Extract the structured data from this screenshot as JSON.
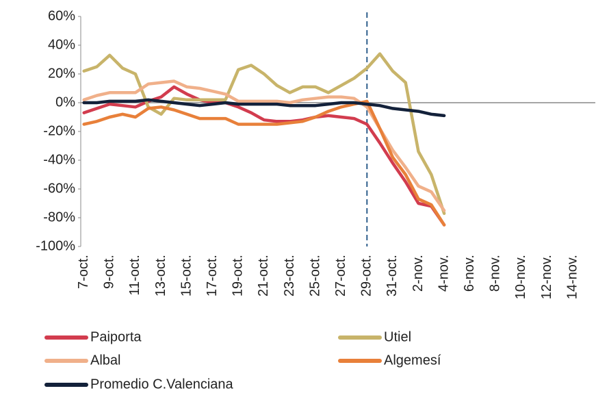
{
  "chart_data": {
    "type": "line",
    "categories": [
      "7-oct.",
      null,
      "9-oct.",
      null,
      "11-oct.",
      null,
      "13-oct.",
      null,
      "15-oct.",
      null,
      "17-oct.",
      null,
      "19-oct.",
      null,
      "21-oct.",
      null,
      "23-oct.",
      null,
      "25-oct.",
      null,
      "27-oct.",
      null,
      "29-oct.",
      null,
      "31-oct.",
      null,
      "2-nov.",
      null,
      "4-nov.",
      null,
      "6-nov.",
      null,
      "8-nov.",
      null,
      "10-nov.",
      null,
      "12-nov.",
      null,
      "14-nov.",
      null
    ],
    "series": [
      {
        "name": "Paiporta",
        "color": "#d23c4e",
        "values": [
          -7,
          -4,
          -1,
          -2,
          -3,
          1,
          4,
          11,
          6,
          2,
          0,
          0,
          -3,
          -7,
          -12,
          -13,
          -13,
          -12,
          -10,
          -9,
          -10,
          -11,
          -15,
          -28,
          -42,
          -55,
          -70,
          -72,
          -85,
          null,
          null,
          null,
          null,
          null,
          null,
          null,
          null,
          null,
          null,
          null
        ]
      },
      {
        "name": "Utiel",
        "color": "#c8b46a",
        "values": [
          22,
          25,
          33,
          24,
          20,
          -3,
          -8,
          3,
          2,
          2,
          2,
          2,
          23,
          26,
          20,
          12,
          7,
          11,
          11,
          7,
          12,
          17,
          24,
          34,
          22,
          14,
          -34,
          -50,
          -77,
          null,
          null,
          null,
          null,
          null,
          null,
          null,
          null,
          null,
          null,
          null
        ]
      },
      {
        "name": "Albal",
        "color": "#f0b08a",
        "values": [
          2,
          5,
          7,
          7,
          7,
          13,
          14,
          15,
          11,
          10,
          8,
          6,
          1,
          1,
          1,
          1,
          0,
          2,
          3,
          4,
          4,
          3,
          -3,
          -18,
          -33,
          -45,
          -58,
          -62,
          -75,
          null,
          null,
          null,
          null,
          null,
          null,
          null,
          null,
          null,
          null,
          null
        ]
      },
      {
        "name": "Algemesí",
        "color": "#e8803a",
        "values": [
          -15,
          -13,
          -10,
          -8,
          -10,
          -4,
          -3,
          -5,
          -8,
          -11,
          -11,
          -11,
          -15,
          -15,
          -15,
          -15,
          -14,
          -13,
          -10,
          -6,
          -3,
          -1,
          1,
          -18,
          -38,
          -50,
          -67,
          -71,
          -85,
          null,
          null,
          null,
          null,
          null,
          null,
          null,
          null,
          null,
          null,
          null
        ]
      },
      {
        "name": "Promedio C.Valenciana",
        "color": "#13213a",
        "values": [
          0,
          0,
          1,
          1,
          1,
          2,
          1,
          0,
          -1,
          -2,
          -1,
          0,
          -1,
          -1,
          -1,
          -1,
          -2,
          -2,
          -2,
          -1,
          0,
          0,
          -1,
          -2,
          -4,
          -5,
          -6,
          -8,
          -9,
          null,
          null,
          null,
          null,
          null,
          null,
          null,
          null,
          null,
          null,
          null
        ]
      }
    ],
    "ylim": [
      -100,
      60
    ],
    "yticks": [
      {
        "value": -100,
        "label": "-100%"
      },
      {
        "value": -80,
        "label": "-80%"
      },
      {
        "value": -60,
        "label": "-60%"
      },
      {
        "value": -40,
        "label": "-40%"
      },
      {
        "value": -20,
        "label": "-20%"
      },
      {
        "value": 0,
        "label": "0%"
      },
      {
        "value": 20,
        "label": "20%"
      },
      {
        "value": 40,
        "label": "40%"
      },
      {
        "value": 60,
        "label": "60%"
      }
    ],
    "vline_index": 22,
    "vline_color": "#2e5e8c",
    "grid": false
  }
}
